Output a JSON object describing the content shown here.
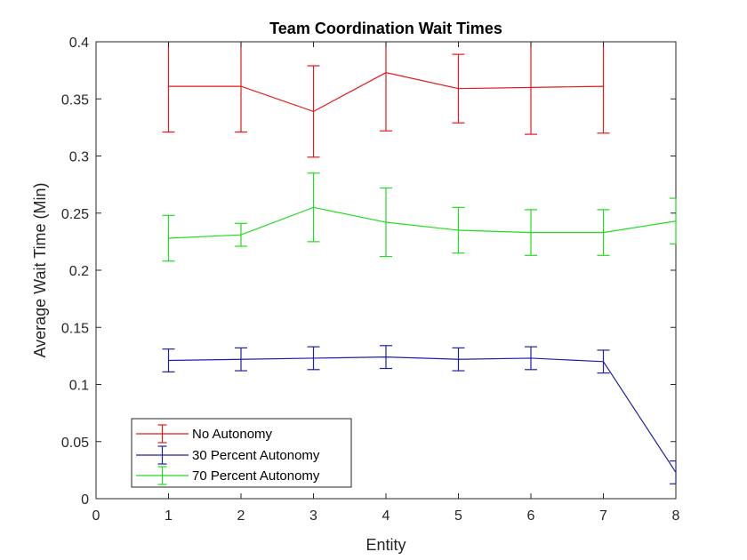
{
  "chart_data": {
    "type": "line",
    "title": "Team Coordination Wait Times",
    "xlabel": "Entity",
    "ylabel": "Average Wait Time (Min)",
    "xlim": [
      0,
      8
    ],
    "ylim": [
      0,
      0.4
    ],
    "xticks": [
      "0",
      "1",
      "2",
      "3",
      "4",
      "5",
      "6",
      "7",
      "8"
    ],
    "yticks": [
      "0",
      "0.05",
      "0.1",
      "0.15",
      "0.2",
      "0.25",
      "0.3",
      "0.35",
      "0.4"
    ],
    "grid": false,
    "legend_position": "bottom-left",
    "series": [
      {
        "name": "No Autonomy",
        "color": "#e41a1c",
        "x": [
          1,
          2,
          3,
          4,
          5,
          6,
          7
        ],
        "y": [
          0.361,
          0.361,
          0.339,
          0.373,
          0.359,
          0.36,
          0.361
        ],
        "err": [
          0.04,
          0.04,
          0.04,
          0.051,
          0.03,
          0.041,
          0.041
        ]
      },
      {
        "name": "30 Percent Autonomy",
        "color": "#1f1fa8",
        "x": [
          1,
          2,
          3,
          4,
          5,
          6,
          7,
          8
        ],
        "y": [
          0.121,
          0.122,
          0.123,
          0.124,
          0.122,
          0.123,
          0.12,
          0.023
        ],
        "err": [
          0.01,
          0.01,
          0.01,
          0.01,
          0.01,
          0.01,
          0.01,
          0.01
        ]
      },
      {
        "name": "70 Percent Autonomy",
        "color": "#22dd22",
        "x": [
          1,
          2,
          3,
          4,
          5,
          6,
          7,
          8
        ],
        "y": [
          0.228,
          0.231,
          0.255,
          0.242,
          0.235,
          0.233,
          0.233,
          0.243
        ],
        "err": [
          0.02,
          0.01,
          0.03,
          0.03,
          0.02,
          0.02,
          0.02,
          0.02
        ]
      }
    ]
  }
}
